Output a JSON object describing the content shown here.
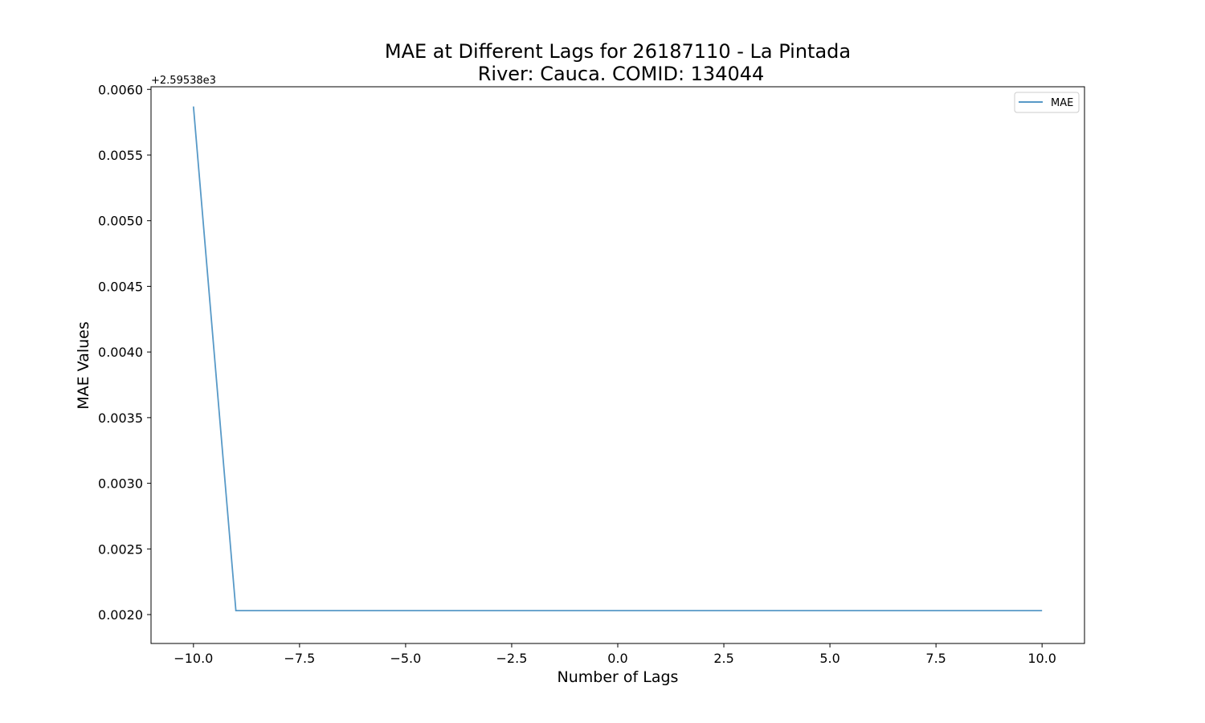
{
  "chart_data": {
    "type": "line",
    "title": "MAE at Different Lags for 26187110 - La Pintada",
    "subtitle": "River: Cauca. COMID: 134044",
    "xlabel": "Number of Lags",
    "ylabel": "MAE Values",
    "y_offset_label": "+2.59538e3",
    "xlim": [
      -11,
      11
    ],
    "ylim": [
      0.00178,
      0.00602
    ],
    "x_ticks": [
      -10.0,
      -7.5,
      -5.0,
      -2.5,
      0.0,
      2.5,
      5.0,
      7.5,
      10.0
    ],
    "x_tick_labels": [
      "−10.0",
      "−7.5",
      "−5.0",
      "−2.5",
      "0.0",
      "2.5",
      "5.0",
      "7.5",
      "10.0"
    ],
    "y_ticks": [
      0.002,
      0.0025,
      0.003,
      0.0035,
      0.004,
      0.0045,
      0.005,
      0.0055,
      0.006
    ],
    "y_tick_labels": [
      "0.0020",
      "0.0025",
      "0.0030",
      "0.0035",
      "0.0040",
      "0.0045",
      "0.0050",
      "0.0055",
      "0.0060"
    ],
    "grid": false,
    "legend_position": "top-right",
    "series": [
      {
        "name": "MAE",
        "color": "#1f77b4",
        "x": [
          -10,
          -9,
          -8,
          -7,
          -6,
          -5,
          -4,
          -3,
          -2,
          -1,
          0,
          1,
          2,
          3,
          4,
          5,
          6,
          7,
          8,
          9,
          10
        ],
        "values": [
          0.00587,
          0.00203,
          0.00203,
          0.00203,
          0.00203,
          0.00203,
          0.00203,
          0.00203,
          0.00203,
          0.00203,
          0.00203,
          0.00203,
          0.00203,
          0.00203,
          0.00203,
          0.00203,
          0.00203,
          0.00203,
          0.00203,
          0.00203,
          0.00203
        ]
      }
    ]
  }
}
